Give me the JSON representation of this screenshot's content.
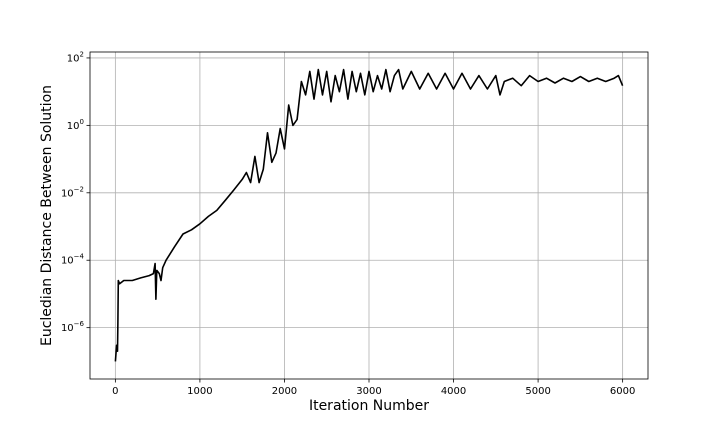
{
  "chart_data": {
    "type": "line",
    "title": "",
    "xlabel": "Iteration Number",
    "ylabel": "Eucledian Distance Between Solution",
    "yscale": "log",
    "grid": true,
    "line_color": "#000000",
    "xlim": [
      -300,
      6300
    ],
    "ylim": [
      3e-08,
      150
    ],
    "x_ticks": [
      {
        "value": 0,
        "label": "0"
      },
      {
        "value": 1000,
        "label": "1000"
      },
      {
        "value": 2000,
        "label": "2000"
      },
      {
        "value": 3000,
        "label": "3000"
      },
      {
        "value": 4000,
        "label": "4000"
      },
      {
        "value": 5000,
        "label": "5000"
      },
      {
        "value": 6000,
        "label": "6000"
      }
    ],
    "y_ticks": [
      {
        "value": 1e-06,
        "base": "10",
        "exp": "−6"
      },
      {
        "value": 0.0001,
        "base": "10",
        "exp": "−4"
      },
      {
        "value": 0.01,
        "base": "10",
        "exp": "−2"
      },
      {
        "value": 1,
        "base": "10",
        "exp": "0"
      },
      {
        "value": 100,
        "base": "10",
        "exp": "2"
      }
    ],
    "series": [
      {
        "points": [
          [
            0,
            1e-07
          ],
          [
            15,
            3e-07
          ],
          [
            25,
            2e-07
          ],
          [
            30,
            1.5e-06
          ],
          [
            35,
            2.5e-05
          ],
          [
            50,
            2e-05
          ],
          [
            100,
            2.5e-05
          ],
          [
            200,
            2.5e-05
          ],
          [
            300,
            3e-05
          ],
          [
            400,
            3.5e-05
          ],
          [
            450,
            4e-05
          ],
          [
            470,
            8e-05
          ],
          [
            480,
            7e-06
          ],
          [
            490,
            5e-05
          ],
          [
            520,
            4e-05
          ],
          [
            540,
            2.5e-05
          ],
          [
            560,
            6e-05
          ],
          [
            600,
            0.0001
          ],
          [
            700,
            0.00025
          ],
          [
            800,
            0.0006
          ],
          [
            900,
            0.0008
          ],
          [
            1000,
            0.0012
          ],
          [
            1100,
            0.002
          ],
          [
            1200,
            0.003
          ],
          [
            1300,
            0.006
          ],
          [
            1400,
            0.012
          ],
          [
            1500,
            0.025
          ],
          [
            1550,
            0.04
          ],
          [
            1600,
            0.02
          ],
          [
            1650,
            0.12
          ],
          [
            1700,
            0.02
          ],
          [
            1750,
            0.05
          ],
          [
            1800,
            0.6
          ],
          [
            1850,
            0.08
          ],
          [
            1900,
            0.15
          ],
          [
            1950,
            0.8
          ],
          [
            2000,
            0.2
          ],
          [
            2050,
            4
          ],
          [
            2100,
            1
          ],
          [
            2150,
            1.5
          ],
          [
            2200,
            20
          ],
          [
            2250,
            8
          ],
          [
            2300,
            40
          ],
          [
            2350,
            6
          ],
          [
            2400,
            45
          ],
          [
            2450,
            8
          ],
          [
            2500,
            40
          ],
          [
            2550,
            5
          ],
          [
            2600,
            30
          ],
          [
            2650,
            10
          ],
          [
            2700,
            45
          ],
          [
            2750,
            6
          ],
          [
            2800,
            40
          ],
          [
            2850,
            10
          ],
          [
            2900,
            35
          ],
          [
            2950,
            8
          ],
          [
            3000,
            40
          ],
          [
            3050,
            10
          ],
          [
            3100,
            30
          ],
          [
            3150,
            12
          ],
          [
            3200,
            45
          ],
          [
            3250,
            10
          ],
          [
            3300,
            30
          ],
          [
            3350,
            45
          ],
          [
            3400,
            12
          ],
          [
            3500,
            40
          ],
          [
            3600,
            12
          ],
          [
            3700,
            35
          ],
          [
            3800,
            12
          ],
          [
            3900,
            35
          ],
          [
            4000,
            12
          ],
          [
            4100,
            35
          ],
          [
            4200,
            12
          ],
          [
            4300,
            30
          ],
          [
            4400,
            12
          ],
          [
            4500,
            30
          ],
          [
            4550,
            8
          ],
          [
            4600,
            20
          ],
          [
            4700,
            25
          ],
          [
            4800,
            15
          ],
          [
            4900,
            30
          ],
          [
            5000,
            20
          ],
          [
            5100,
            25
          ],
          [
            5200,
            18
          ],
          [
            5300,
            25
          ],
          [
            5400,
            20
          ],
          [
            5500,
            28
          ],
          [
            5600,
            20
          ],
          [
            5700,
            25
          ],
          [
            5800,
            20
          ],
          [
            5900,
            25
          ],
          [
            5950,
            30
          ],
          [
            6000,
            15
          ]
        ]
      }
    ]
  }
}
